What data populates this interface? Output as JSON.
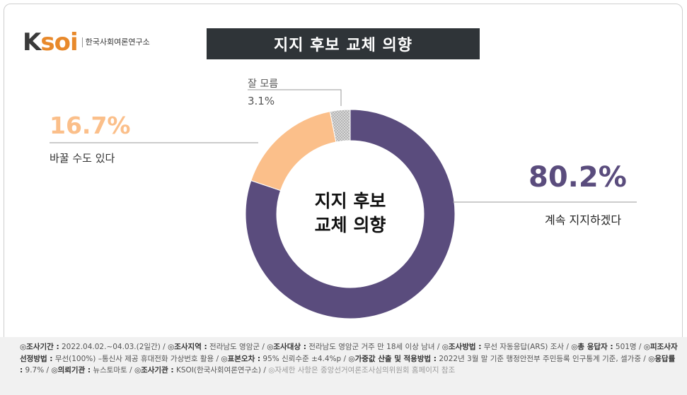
{
  "logo": {
    "mark_k": "K",
    "mark_rest": "soi",
    "org_name": "한국사회여론연구소"
  },
  "title": "지지 후보 교체 의향",
  "chart_data": {
    "type": "pie",
    "variant": "donut",
    "center_label_lines": [
      "지지 후보",
      "교체 의향"
    ],
    "slices": [
      {
        "label": "계속 지지하겠다",
        "value": 80.2,
        "value_text": "80.2%",
        "color": "#5a4c7d"
      },
      {
        "label": "바꿀 수도 있다",
        "value": 16.7,
        "value_text": "16.7%",
        "color": "#fbbf8a"
      },
      {
        "label": "잘 모름",
        "value": 3.1,
        "value_text": "3.1%",
        "color": "#bdbdbd"
      }
    ]
  },
  "footer": {
    "items": [
      {
        "key": "◎조사기간 :",
        "val": " 2022.04.02.~04.03.(2일간) / "
      },
      {
        "key": "◎조사지역 :",
        "val": " 전라남도 영암군 / "
      },
      {
        "key": "◎조사대상 :",
        "val": " 전라남도 영암군 거주 만 18세 이상 남녀 / "
      },
      {
        "key": "◎조사방법 :",
        "val": " 무선 자동응답(ARS) 조사 / "
      },
      {
        "key": "◎총 응답자 :",
        "val": " 501명 / "
      },
      {
        "key": "◎피조사자선정방법 :",
        "val": " 무선(100%) –통신사 제공 휴대전화 가상번호 활용 / "
      },
      {
        "key": "◎표본오차 :",
        "val": " 95% 신뢰수준 ±4.4%p / "
      },
      {
        "key": "◎가중값 산출 및 적용방법 :",
        "val": " 2022년 3월 말 기준 행정안전부 주민등록 인구통계 기준, 셀가중 / "
      },
      {
        "key": "◎응답률 :",
        "val": " 9.7% / "
      },
      {
        "key": "◎의뢰기관 :",
        "val": " 뉴스토마토 / "
      },
      {
        "key": "◎조사기관 :",
        "val": " KSOI(한국사회여론연구소) / "
      }
    ],
    "note": "◎자세한 사항은 중앙선거여론조사심의위원회 홈페이지 참조"
  }
}
